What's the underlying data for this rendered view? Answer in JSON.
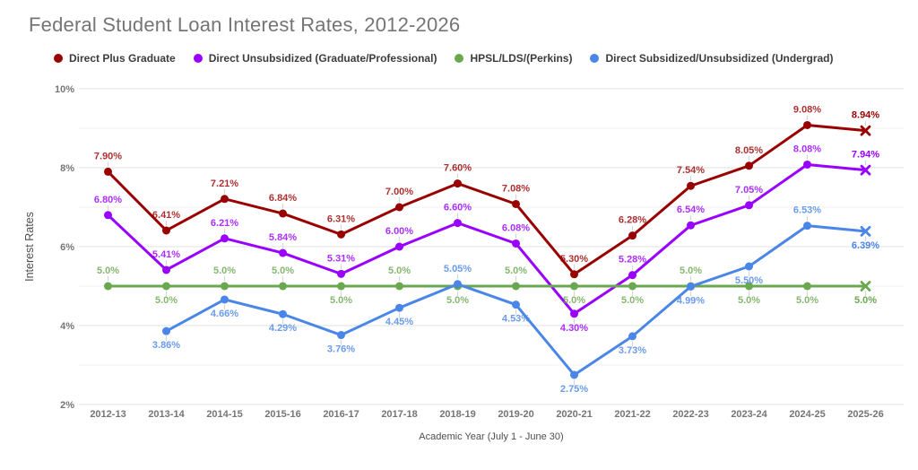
{
  "title": "Federal Student Loan Interest Rates, 2012-2026",
  "legend": {
    "items": [
      {
        "label": "Direct Plus Graduate",
        "color": "#990000"
      },
      {
        "label": "Direct Unsubsidized (Graduate/Professional)",
        "color": "#9900ff"
      },
      {
        "label": "HPSL/LDS/(Perkins)",
        "color": "#6aa84f"
      },
      {
        "label": "Direct Subsidized/Unsubsidized (Undergrad)",
        "color": "#4a86e8"
      }
    ]
  },
  "chart_data": {
    "type": "line",
    "title": "Federal Student Loan Interest Rates, 2012-2026",
    "xlabel": "Academic Year (July 1 - June 30)",
    "ylabel": "Interest Rates",
    "ylim": [
      2,
      10
    ],
    "y_tick_values": [
      2,
      4,
      6,
      8,
      10
    ],
    "y_tick_labels": [
      "2%",
      "4%",
      "6%",
      "8%",
      "10%"
    ],
    "minor_grid_step": 1,
    "grid": "horizontal",
    "legend_position": "top",
    "final_year_marker": "x",
    "categories": [
      "2012-13",
      "2013-14",
      "2014-15",
      "2015-16",
      "2016-17",
      "2017-18",
      "2018-19",
      "2019-20",
      "2020-21",
      "2021-22",
      "2022-23",
      "2023-24",
      "2024-25",
      "2025-26"
    ],
    "series": [
      {
        "name": "Direct Plus Graduate",
        "color": "#990000",
        "values": [
          7.9,
          6.41,
          7.21,
          6.84,
          6.31,
          7.0,
          7.6,
          7.08,
          5.3,
          6.28,
          7.54,
          8.05,
          9.08,
          8.94
        ],
        "labels": [
          "7.90%",
          "6.41%",
          "7.21%",
          "6.84%",
          "6.31%",
          "7.00%",
          "7.60%",
          "7.08%",
          "5.30%",
          "6.28%",
          "7.54%",
          "8.05%",
          "9.08%",
          "8.94%"
        ],
        "label_positions": [
          "a",
          "a",
          "a",
          "a",
          "a",
          "a",
          "a",
          "a",
          "a",
          "a",
          "a",
          "a",
          "a",
          "a"
        ]
      },
      {
        "name": "Direct Unsubsidized (Graduate/Professional)",
        "color": "#9900ff",
        "values": [
          6.8,
          5.41,
          6.21,
          5.84,
          5.31,
          6.0,
          6.6,
          6.08,
          4.3,
          5.28,
          6.54,
          7.05,
          8.08,
          7.94
        ],
        "labels": [
          "6.80%",
          "5.41%",
          "6.21%",
          "5.84%",
          "5.31%",
          "6.00%",
          "6.60%",
          "6.08%",
          "4.30%",
          "5.28%",
          "6.54%",
          "7.05%",
          "8.08%",
          "7.94%"
        ],
        "label_positions": [
          "a",
          "a",
          "a",
          "a",
          "a",
          "a",
          "a",
          "a",
          "b",
          "a",
          "a",
          "a",
          "a",
          "a"
        ]
      },
      {
        "name": "HPSL/LDS/(Perkins)",
        "color": "#6aa84f",
        "values": [
          5.0,
          5.0,
          5.0,
          5.0,
          5.0,
          5.0,
          5.0,
          5.0,
          5.0,
          5.0,
          5.0,
          5.0,
          5.0,
          5.0
        ],
        "labels": [
          "5.0%",
          "5.0%",
          "5.0%",
          "5.0%",
          "5.0%",
          "5.0%",
          "5.0%",
          "5.0%",
          "5.0%",
          "5.0%",
          "5.0%",
          "5.0%",
          "5.0%",
          "5.0%"
        ],
        "label_positions": [
          "a",
          "b",
          "a",
          "a",
          "b",
          "a",
          "b",
          "a",
          "b",
          "b",
          "a",
          "b",
          "b",
          "b"
        ]
      },
      {
        "name": "Direct Subsidized/Unsubsidized (Undergrad)",
        "color": "#4a86e8",
        "values": [
          null,
          3.86,
          4.66,
          4.29,
          3.76,
          4.45,
          5.05,
          4.53,
          2.75,
          3.73,
          4.99,
          5.5,
          6.53,
          6.39
        ],
        "labels": [
          null,
          "3.86%",
          "4.66%",
          "4.29%",
          "3.76%",
          "4.45%",
          "5.05%",
          "4.53%",
          "2.75%",
          "3.73%",
          "4.99%",
          "5.50%",
          "6.53%",
          "6.39%"
        ],
        "label_positions": [
          null,
          "b",
          "b",
          "b",
          "b",
          "b",
          "a",
          "b",
          "b",
          "b",
          "b",
          "b",
          "a",
          "b"
        ]
      }
    ]
  }
}
